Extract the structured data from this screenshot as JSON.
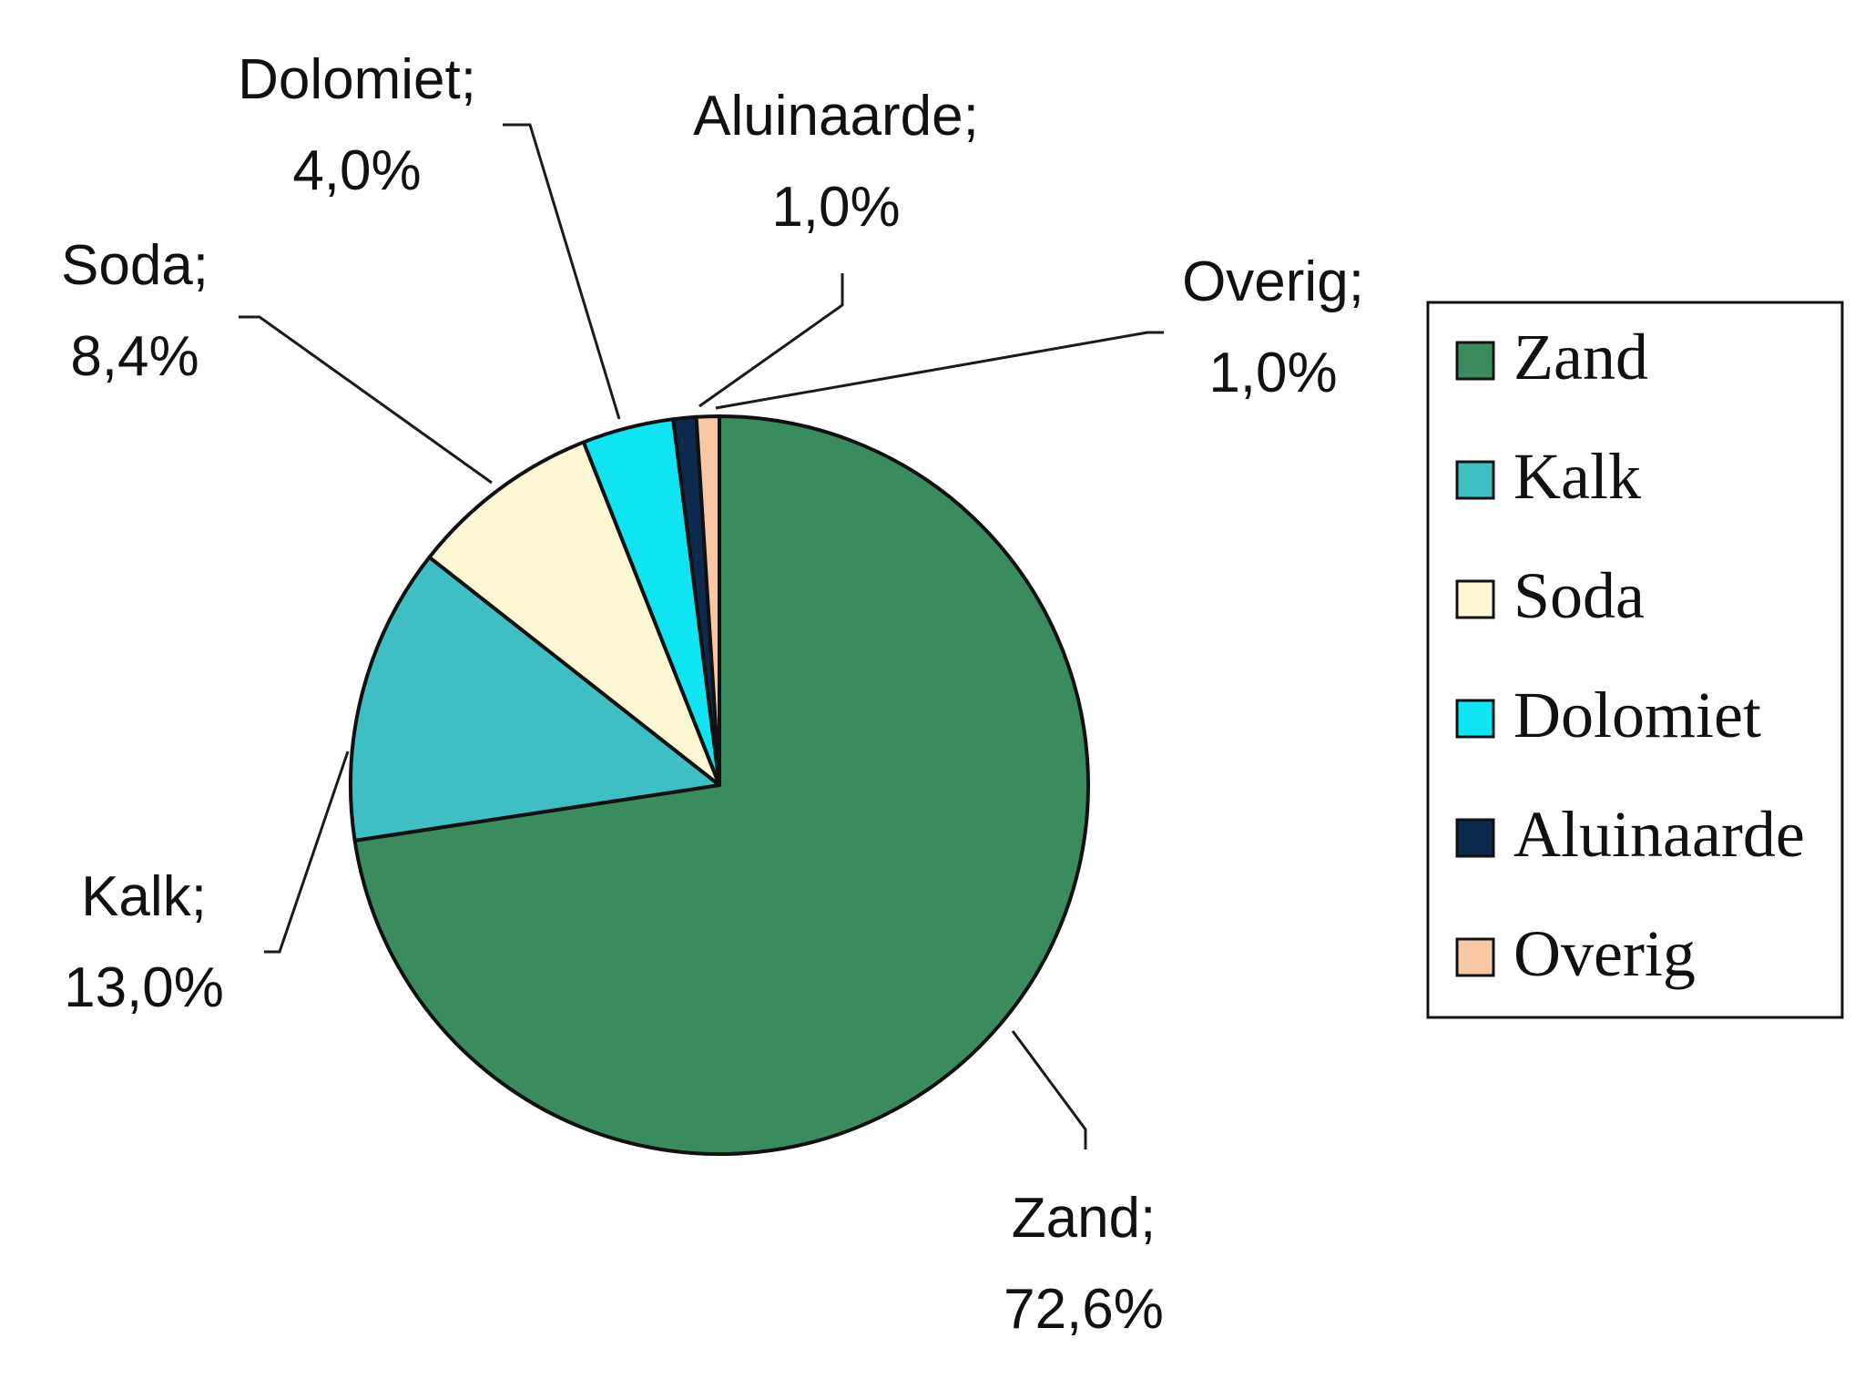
{
  "chart_data": {
    "type": "pie",
    "title": "",
    "slices": [
      {
        "name": "Zand",
        "value": 72.6,
        "label": "Zand;",
        "pct": "72,6%",
        "color": "#3a8b5e"
      },
      {
        "name": "Kalk",
        "value": 13.0,
        "label": "Kalk;",
        "pct": "13,0%",
        "color": "#3fbfc4"
      },
      {
        "name": "Soda",
        "value": 8.4,
        "label": "Soda;",
        "pct": "8,4%",
        "color": "#fbf7d2"
      },
      {
        "name": "Dolomiet",
        "value": 4.0,
        "label": "Dolomiet;",
        "pct": "4,0%",
        "color": "#10e4f2"
      },
      {
        "name": "Aluinaarde",
        "value": 1.0,
        "label": "Aluinaarde;",
        "pct": "1,0%",
        "color": "#0d2a4e"
      },
      {
        "name": "Overig",
        "value": 1.0,
        "label": "Overig;",
        "pct": "1,0%",
        "color": "#f7c7a6"
      }
    ],
    "legend": {
      "position": "right",
      "entries": [
        "Zand",
        "Kalk",
        "Soda",
        "Dolomiet",
        "Aluinaarde",
        "Overig"
      ]
    }
  }
}
